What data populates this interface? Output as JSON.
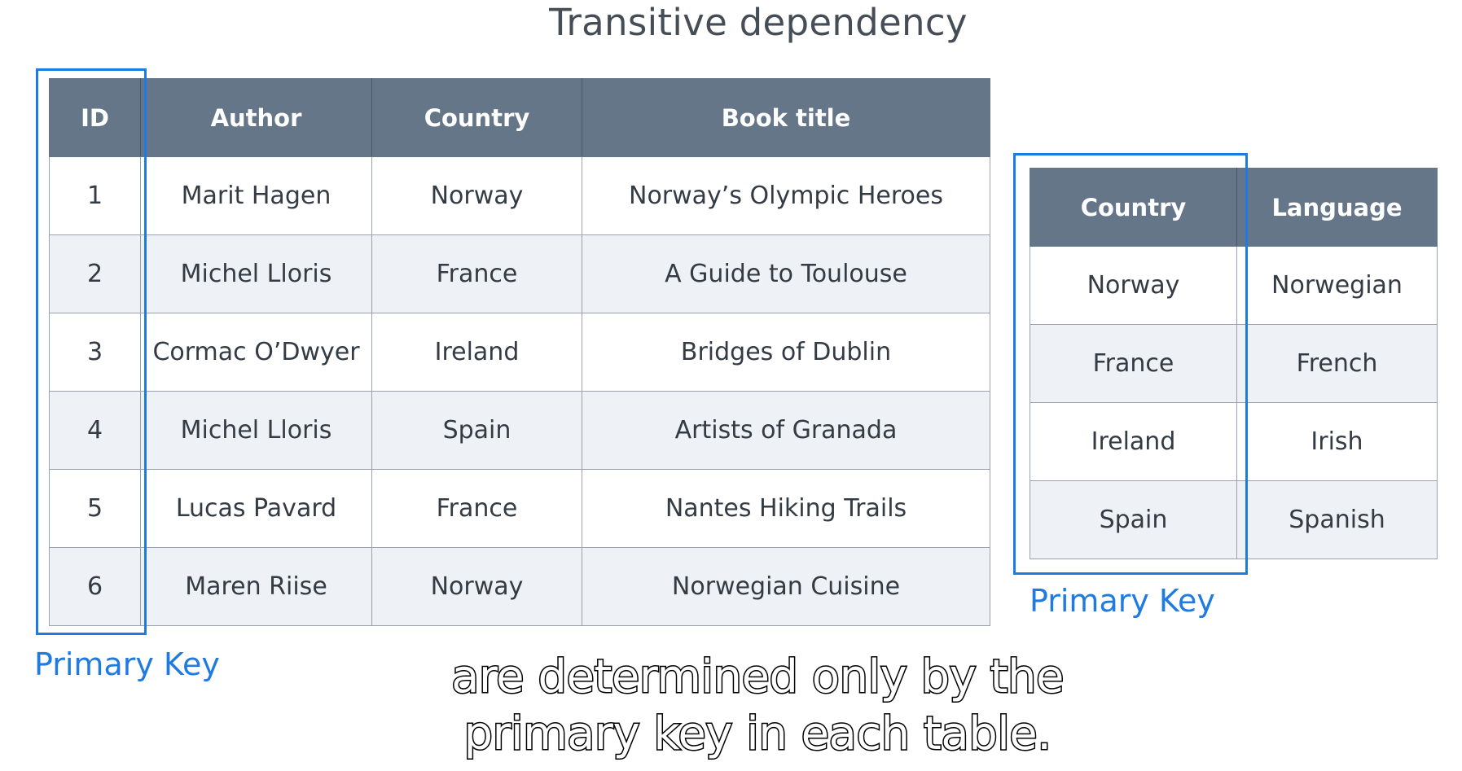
{
  "title": "Transitive dependency",
  "books_table": {
    "headers": [
      "ID",
      "Author",
      "Country",
      "Book title"
    ],
    "rows": [
      [
        "1",
        "Marit Hagen",
        "Norway",
        "Norway’s Olympic Heroes"
      ],
      [
        "2",
        "Michel Lloris",
        "France",
        "A Guide to Toulouse"
      ],
      [
        "3",
        "Cormac O’Dwyer",
        "Ireland",
        "Bridges of Dublin"
      ],
      [
        "4",
        "Michel Lloris",
        "Spain",
        "Artists of Granada"
      ],
      [
        "5",
        "Lucas Pavard",
        "France",
        "Nantes Hiking Trails"
      ],
      [
        "6",
        "Maren Riise",
        "Norway",
        "Norwegian Cuisine"
      ]
    ],
    "primary_key_label": "Primary Key"
  },
  "language_table": {
    "headers": [
      "Country",
      "Language"
    ],
    "rows": [
      [
        "Norway",
        "Norwegian"
      ],
      [
        "France",
        "French"
      ],
      [
        "Ireland",
        "Irish"
      ],
      [
        "Spain",
        "Spanish"
      ]
    ],
    "primary_key_label": "Primary Key"
  },
  "caption": {
    "line1": "are determined only by the",
    "line2": "primary key in each table."
  },
  "colors": {
    "header_bg": "#667689",
    "primary_key_accent": "#1f7be0",
    "stripe_bg": "#eef1f5"
  }
}
